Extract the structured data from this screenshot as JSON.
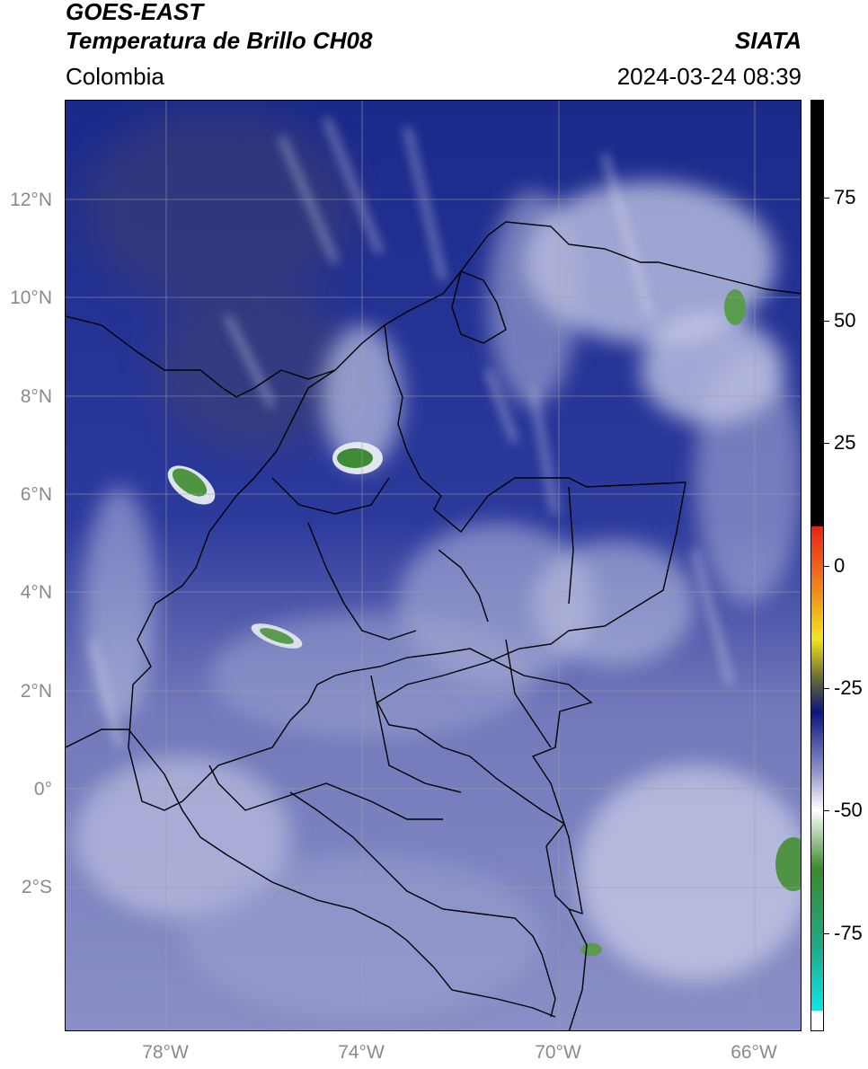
{
  "header": {
    "title_line1": "GOES-EAST",
    "title_line2": "Temperatura de Brillo CH08",
    "brand": "SIATA",
    "region": "Colombia",
    "timestamp": "2024-03-24 08:39"
  },
  "axes": {
    "lat_labels": [
      "12°N",
      "10°N",
      "8°N",
      "6°N",
      "4°N",
      "2°N",
      "0°",
      "2°S"
    ],
    "lon_labels": [
      "78°W",
      "74°W",
      "70°W",
      "66°W"
    ]
  },
  "colorbar": {
    "tick_labels": [
      "75",
      "50",
      "25",
      "0",
      "-25",
      "-50",
      "-75"
    ],
    "tick_values": [
      75,
      50,
      25,
      0,
      -25,
      -50,
      -75
    ],
    "range": [
      -95,
      95
    ],
    "colors": {
      "warm_black": "#000000",
      "red": "#e8221a",
      "orange": "#f08a1a",
      "yellow": "#f2e51e",
      "olive": "#6b6b32",
      "navy": "#0b1580",
      "lavender": "#8f93c8",
      "white": "#ffffff",
      "green": "#3a8a2a",
      "teal": "#1faa8a",
      "cyan": "#10e0e0"
    }
  },
  "map": {
    "background_color": "#2a3a9a",
    "cloud_color": "#c8cbe6",
    "convective_color": "#3f8f35",
    "grid_color": "#9a9a9a",
    "border_color": "#000000"
  }
}
